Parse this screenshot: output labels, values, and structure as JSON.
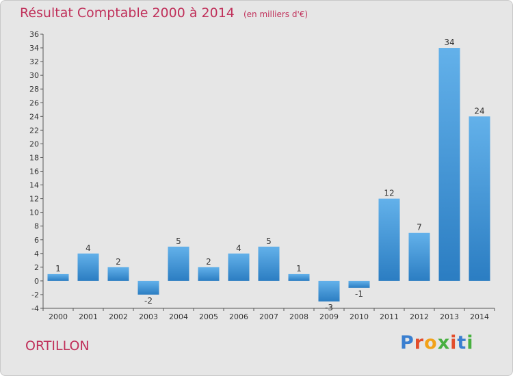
{
  "header": {
    "title": "Résultat Comptable 2000 à 2014",
    "subtitle": "(en milliers d'€)"
  },
  "footer": {
    "commune": "ORTILLON",
    "brand": "Proxiti",
    "brand_colors": [
      "#3a7fd0",
      "#e34d2b",
      "#f2a219",
      "#48b040",
      "#e34d2b",
      "#3a7fd0",
      "#48b040"
    ]
  },
  "colors": {
    "bar_light": "#63b1ea",
    "bar_dark": "#2b7dc2",
    "title": "#c0305a",
    "background": "#e6e6e6"
  },
  "chart_data": {
    "type": "bar",
    "categories": [
      "2000",
      "2001",
      "2002",
      "2003",
      "2004",
      "2005",
      "2006",
      "2007",
      "2008",
      "2009",
      "2010",
      "2011",
      "2012",
      "2013",
      "2014"
    ],
    "values": [
      1,
      4,
      2,
      -2,
      5,
      2,
      4,
      5,
      1,
      -3,
      -1,
      12,
      7,
      34,
      24
    ],
    "value_labels": [
      "1",
      "4",
      "2",
      "-2",
      "5",
      "2",
      "4",
      "5",
      "1",
      "-3",
      "-1",
      "12",
      "7",
      "34",
      "24"
    ],
    "ylim": [
      -4,
      36
    ],
    "yticks": [
      -4,
      -2,
      0,
      2,
      4,
      6,
      8,
      10,
      12,
      14,
      16,
      18,
      20,
      22,
      24,
      26,
      28,
      30,
      32,
      34,
      36
    ],
    "grid": false,
    "legend": "none"
  }
}
